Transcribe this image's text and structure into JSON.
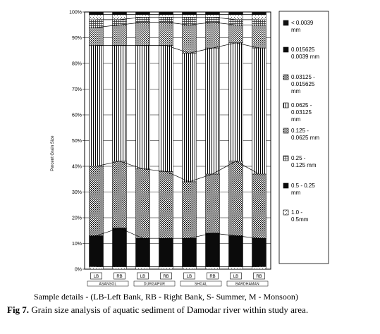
{
  "chart_data": {
    "type": "bar",
    "stacked": true,
    "ylabel": "Percent Grain Size",
    "yticks": [
      "0%",
      "10%",
      "20%",
      "30%",
      "40%",
      "50%",
      "60%",
      "70%",
      "80%",
      "90%",
      "100%"
    ],
    "ylim": [
      0,
      100
    ],
    "categories": [
      "LB",
      "RB",
      "LB",
      "RB",
      "LB",
      "RB",
      "LB",
      "RB"
    ],
    "groups": [
      "ASANSOL",
      "DURGAPUR",
      "SHOAL",
      "BARDHAMAN"
    ],
    "series": [
      {
        "name": "1.0 - 0.5mm",
        "values": [
          1,
          1,
          1,
          1,
          1,
          1,
          1,
          1
        ]
      },
      {
        "name": "0.5 - 0.25 mm",
        "values": [
          12,
          15,
          11,
          11,
          11,
          13,
          12,
          11
        ]
      },
      {
        "name": "0.25 - 0.125 mm",
        "values": [
          27,
          26,
          27,
          26,
          22,
          23,
          29,
          25
        ]
      },
      {
        "name": "0.125 - 0.0625 mm",
        "values": [
          47,
          45,
          48,
          49,
          50,
          49,
          46,
          49
        ]
      },
      {
        "name": "0.0625 - 0.03125 mm",
        "values": [
          7,
          8,
          9,
          9,
          11,
          10,
          7,
          9
        ]
      },
      {
        "name": "0.03125 - 0.015625 mm",
        "values": [
          3,
          2,
          2,
          2,
          3,
          2,
          2,
          2
        ]
      },
      {
        "name": "0.015625 - 0.0039 mm",
        "values": [
          2,
          2,
          1,
          1,
          1,
          1,
          2,
          2
        ]
      },
      {
        "name": "< 0.0039 mm",
        "values": [
          1,
          1,
          1,
          1,
          1,
          1,
          1,
          1
        ]
      }
    ],
    "legend": [
      [
        "< 0.0039",
        "mm"
      ],
      [
        "0.015625",
        "0.0039 mm"
      ],
      [
        "0.03125 -",
        "0.015625",
        "mm"
      ],
      [
        "0.0625 -",
        "0.03125",
        "mm"
      ],
      [
        "0.125 -",
        "0.0625 mm"
      ],
      [
        "0.25 -",
        "0.125 mm"
      ],
      [
        "0.5 - 0.25",
        "mm"
      ],
      [
        "1.0 -",
        "0.5mm"
      ]
    ],
    "legend_position": "right",
    "colors": [
      "#ffffff",
      "#0a0a0a",
      "#c9c9c9",
      "#6e6e6e",
      "#dcdcdc",
      "#9a9a9a",
      "#f2f2f2",
      "#111111"
    ]
  },
  "sample_details": "Sample details - (LB-Left Bank, RB - Right Bank, S- Summer, M - Monsoon)",
  "caption_label": "Fig 7.",
  "caption_text": " Grain size analysis of aquatic sediment of Damodar river within study area."
}
